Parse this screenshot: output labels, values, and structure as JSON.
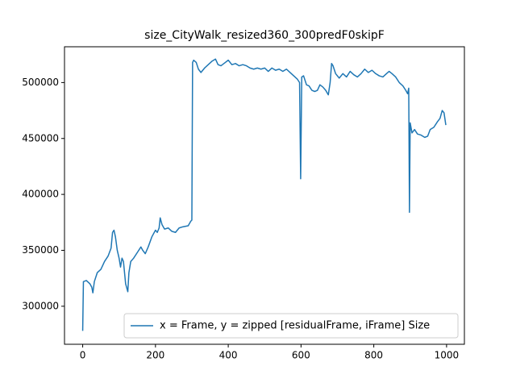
{
  "chart_data": {
    "type": "line",
    "title": "size_CityWalk_resized360_300predF0skipF",
    "x": [
      0,
      2,
      10,
      20,
      25,
      28,
      32,
      40,
      50,
      60,
      70,
      78,
      82,
      86,
      90,
      95,
      100,
      104,
      108,
      112,
      118,
      124,
      127,
      132,
      140,
      150,
      160,
      165,
      172,
      180,
      190,
      200,
      205,
      210,
      213,
      218,
      225,
      235,
      245,
      255,
      265,
      275,
      290,
      297,
      300,
      302,
      305,
      312,
      318,
      325,
      335,
      345,
      355,
      365,
      372,
      380,
      392,
      400,
      410,
      420,
      430,
      440,
      450,
      460,
      470,
      480,
      490,
      500,
      510,
      520,
      530,
      540,
      550,
      560,
      570,
      580,
      590,
      596,
      599,
      602,
      607,
      615,
      622,
      630,
      638,
      645,
      652,
      660,
      668,
      675,
      680,
      684,
      688,
      695,
      705,
      715,
      725,
      735,
      745,
      755,
      765,
      775,
      785,
      795,
      805,
      815,
      825,
      835,
      842,
      850,
      860,
      870,
      880,
      888,
      893,
      896,
      898,
      900,
      905,
      912,
      920,
      930,
      940,
      948,
      955,
      965,
      975,
      982,
      988,
      993,
      998
    ],
    "series": [
      {
        "name": "x = Frame, y =  zipped [residualFrame, iFrame] Size",
        "color": "#1f77b4",
        "values": [
          278000,
          322000,
          323000,
          320000,
          317000,
          312000,
          322000,
          330000,
          333000,
          340000,
          345000,
          352000,
          366000,
          368000,
          362000,
          350000,
          343000,
          335000,
          343000,
          340000,
          320000,
          313000,
          330000,
          340000,
          343000,
          348000,
          353000,
          350000,
          347000,
          353000,
          362000,
          368000,
          366000,
          370000,
          379000,
          373000,
          369000,
          370000,
          367000,
          366000,
          370000,
          371000,
          372000,
          376000,
          377000,
          518000,
          520000,
          518000,
          512000,
          509000,
          513000,
          516000,
          519000,
          521000,
          516000,
          515000,
          518000,
          520000,
          516000,
          517000,
          515000,
          516000,
          515000,
          513000,
          512000,
          513000,
          512000,
          513000,
          510000,
          513000,
          511000,
          512000,
          510000,
          512000,
          509000,
          506000,
          503000,
          500000,
          414000,
          505000,
          506000,
          498000,
          497000,
          493000,
          492000,
          493000,
          498000,
          496000,
          493000,
          489000,
          500000,
          517000,
          515000,
          508000,
          504000,
          508000,
          505000,
          510000,
          507000,
          505000,
          508000,
          512000,
          509000,
          511000,
          508000,
          506000,
          505000,
          508000,
          510000,
          508000,
          505000,
          500000,
          497000,
          493000,
          490000,
          495000,
          384000,
          464000,
          455000,
          458000,
          454000,
          453000,
          451000,
          452000,
          458000,
          460000,
          465000,
          468000,
          475000,
          473000,
          462000
        ]
      }
    ],
    "xlim": [
      -50,
      1049
    ],
    "xticks": [
      0,
      200,
      400,
      600,
      800,
      1000
    ],
    "ylim": [
      266000,
      532000
    ],
    "yticks": [
      300000,
      350000,
      400000,
      450000,
      500000
    ],
    "legend": "lower right"
  }
}
